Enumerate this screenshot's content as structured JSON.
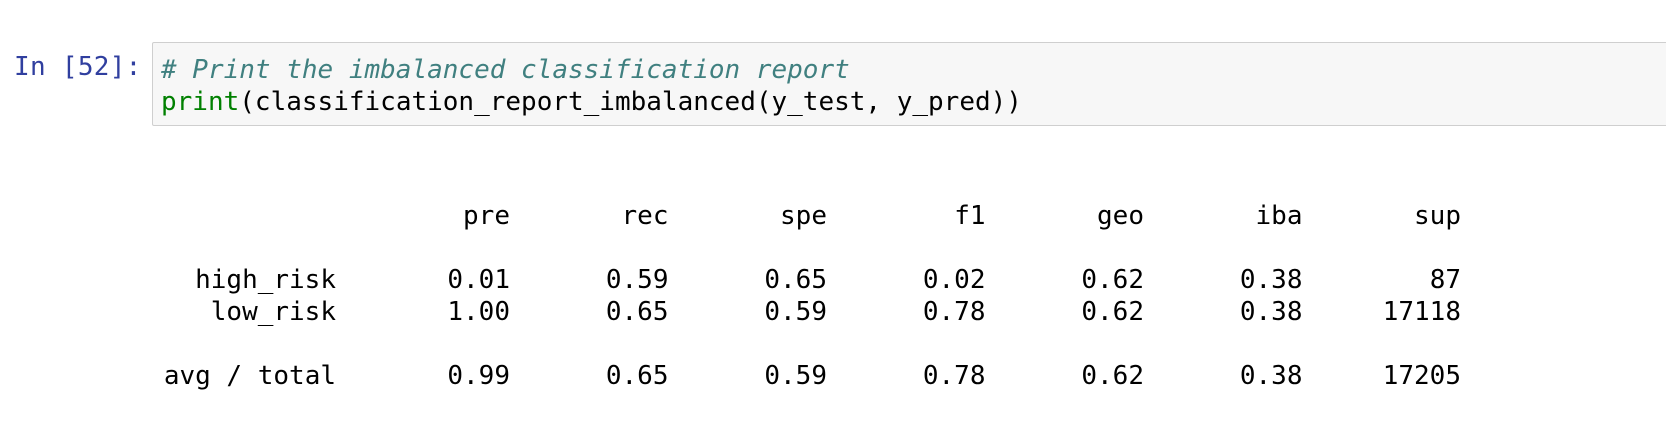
{
  "cell": {
    "prompt": "In [52]:",
    "code": {
      "comment": "# Print the imbalanced classification report",
      "line2_builtin": "print",
      "line2_rest": "(classification_report_imbalanced(y_test, y_pred))"
    }
  },
  "report": {
    "columns": [
      "pre",
      "rec",
      "spe",
      "f1",
      "geo",
      "iba",
      "sup"
    ],
    "rows": [
      {
        "label": "high_risk",
        "values": [
          "0.01",
          "0.59",
          "0.65",
          "0.02",
          "0.62",
          "0.38",
          "87"
        ]
      },
      {
        "label": "low_risk",
        "values": [
          "1.00",
          "0.65",
          "0.59",
          "0.78",
          "0.62",
          "0.38",
          "17118"
        ]
      }
    ],
    "total": {
      "label": "avg / total",
      "values": [
        "0.99",
        "0.65",
        "0.59",
        "0.78",
        "0.62",
        "0.38",
        "17205"
      ]
    }
  }
}
